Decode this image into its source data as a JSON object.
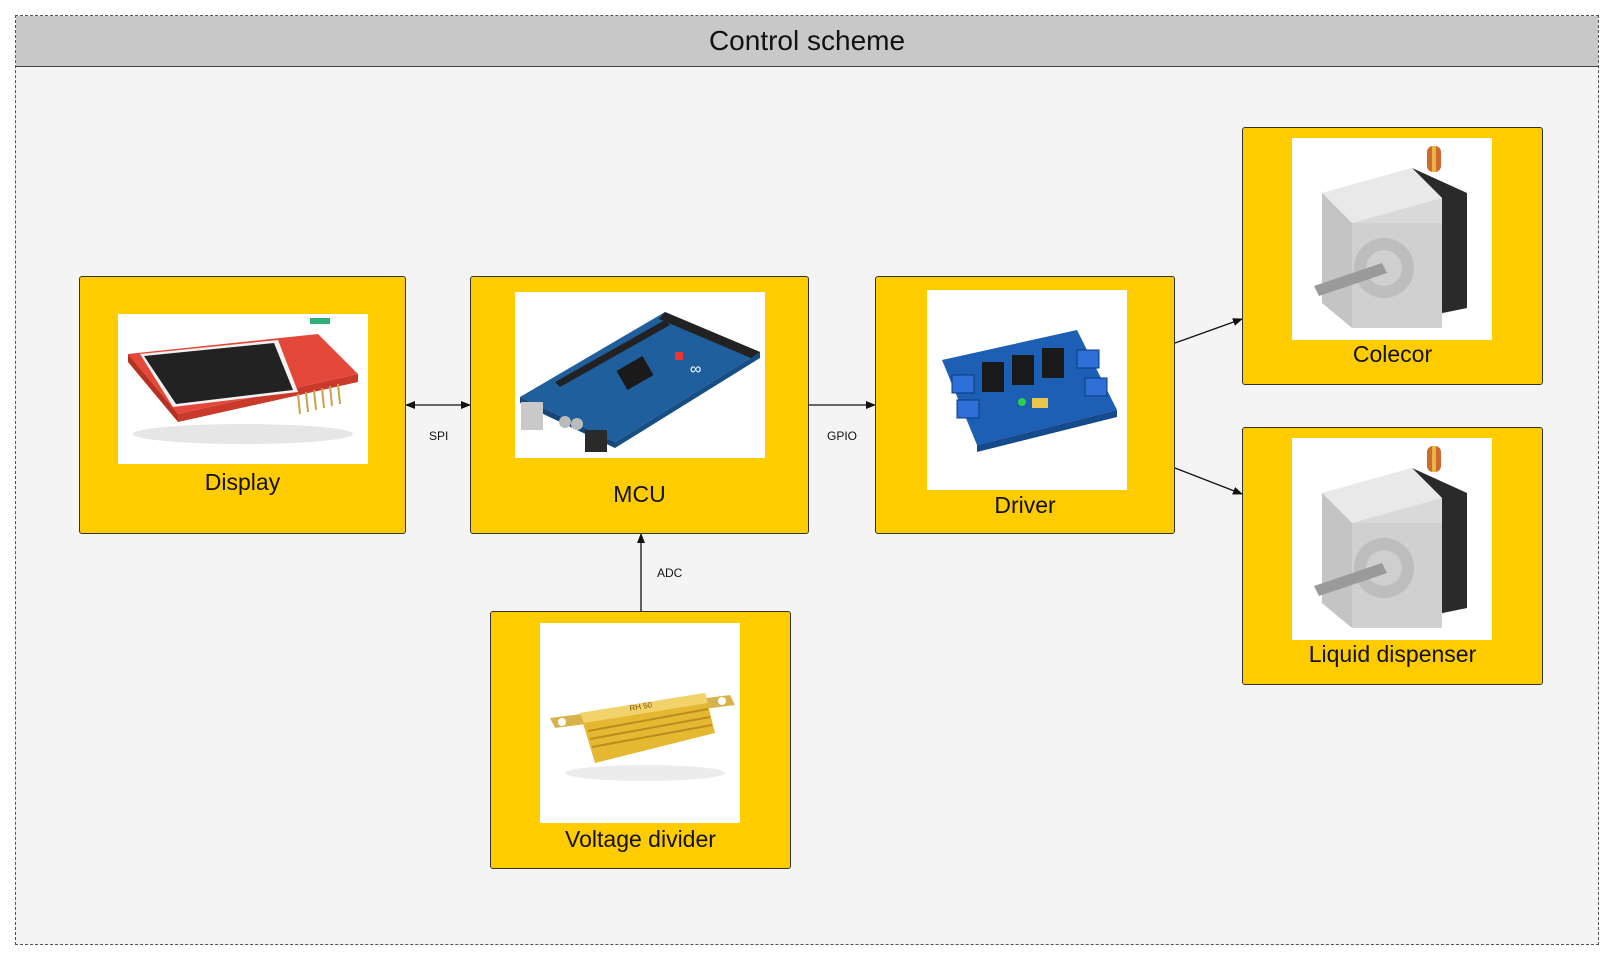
{
  "title": "Control scheme",
  "nodes": {
    "display": {
      "label": "Display",
      "icon": "tft-display-module-image"
    },
    "mcu": {
      "label": "MCU",
      "icon": "arduino-mega-board-image"
    },
    "driver": {
      "label": "Driver",
      "icon": "motor-driver-shield-image"
    },
    "colecor": {
      "label": "Colecor",
      "icon": "stepper-motor-image"
    },
    "dispenser": {
      "label": "Liquid dispenser",
      "icon": "stepper-motor-image"
    },
    "divider": {
      "label": "Voltage divider",
      "icon": "power-resistor-image"
    }
  },
  "edges": {
    "spi": "SPI",
    "gpio": "GPIO",
    "adc": "ADC"
  },
  "colors": {
    "node_fill": "#ffcc00",
    "header_fill": "#c8c8c8",
    "background": "#f4f4f4"
  }
}
